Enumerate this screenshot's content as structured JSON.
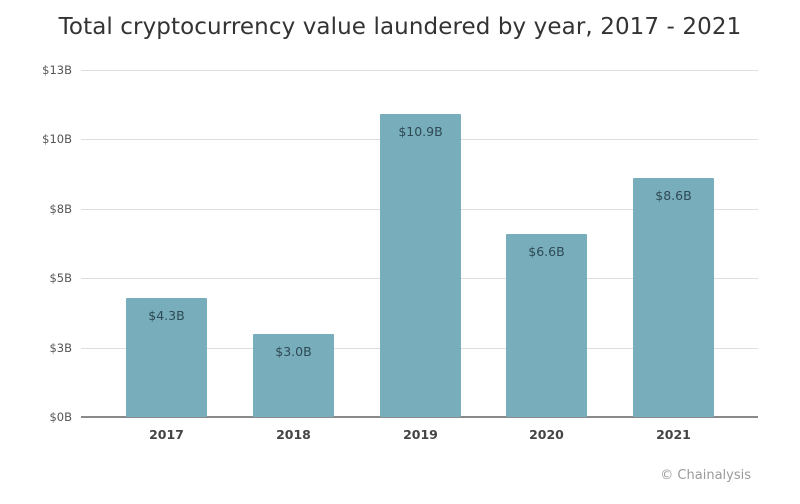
{
  "chart_data": {
    "type": "bar",
    "title": "Total cryptocurrency value laundered by year, 2017 - 2021",
    "xlabel": "",
    "ylabel": "",
    "categories": [
      "2017",
      "2018",
      "2019",
      "2020",
      "2021"
    ],
    "values": [
      4.3,
      3.0,
      10.9,
      6.6,
      8.6
    ],
    "value_labels": [
      "$4.3B",
      "$3.0B",
      "$10.9B",
      "$6.6B",
      "$8.6B"
    ],
    "unit": "USD billions",
    "ylim": [
      0,
      12.5
    ],
    "yticks": [
      0,
      2.5,
      5,
      7.5,
      10,
      12.5
    ],
    "ytick_labels": [
      "$0B",
      "$3B",
      "$5B",
      "$8B",
      "$10B",
      "$13B"
    ],
    "grid": true,
    "legend": null,
    "bar_color": "#78aebb",
    "source": "© Chainalysis"
  },
  "header": {
    "title": "Total cryptocurrency value laundered by year, 2017 - 2021"
  },
  "footer": {
    "credit": "© Chainalysis"
  }
}
